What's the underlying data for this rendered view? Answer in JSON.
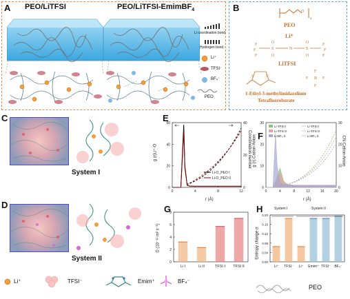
{
  "panels": {
    "A": {
      "letter": "A",
      "title_left": "PEO/LiTFSI",
      "title_right": "PEO/LiTFSI-EmimBF",
      "title_right_sub": "4",
      "legend": [
        "Li coordination bond",
        "Hydrogen bond",
        "Li⁺",
        "TFSI⁻",
        "BF₄⁻",
        "PEO"
      ]
    },
    "B": {
      "letter": "B",
      "peo": "PEO",
      "li": "Li⁺",
      "litfsi": "LiTFSI",
      "emim_line1": "1-Ethyl-3-methylimidazolium",
      "emim_line2": "Tetrafluoroborate"
    },
    "C": {
      "letter": "C",
      "system": "System I"
    },
    "D": {
      "letter": "D",
      "system": "System II"
    },
    "E": {
      "letter": "E",
      "ylabel_left": "g (r)Li⁺-O",
      "ylabel_right": "Coordination number",
      "xlabel": "r (Å)",
      "legend": [
        "Li-O_PEO I",
        "Li-O_PEO II"
      ]
    },
    "F": {
      "letter": "F",
      "ylabel_left": "g (r) Cation-Anion",
      "ylabel_right": "CN Cation-Anion",
      "xlabel": "r (Å)",
      "legend": [
        "Li-TFSI I",
        "Li-TFSI II",
        "Li-BF₄ II",
        "Li-TFSI I",
        "Li-TFSI II",
        "Li-BF₄ II"
      ]
    },
    "G": {
      "letter": "G",
      "ylabel": "D (10⁻¹¹ m² s⁻¹)"
    },
    "H": {
      "letter": "H",
      "ylabel": "Entropy change σ",
      "xlabel_group": "PEO",
      "group1": "System I",
      "group2": "System II"
    }
  },
  "bottom_legend": [
    "Li⁺",
    "TFSI⁻",
    "Emim⁺",
    "BF₄⁻"
  ],
  "chart_data": [
    {
      "type": "line",
      "panel": "E",
      "xlabel": "r (Å)",
      "ylabel": "g (r)Li⁺-O",
      "xlim": [
        0,
        12
      ],
      "x_ticks": [
        0,
        4,
        8,
        12
      ],
      "y_ticks_left": [
        0,
        20,
        40,
        60
      ],
      "y_ticks_right": [
        0,
        20,
        40
      ],
      "series": [
        {
          "name": "Li-O_PEO I",
          "color": "#000000",
          "x": [
            0,
            1.5,
            2.0,
            2.2,
            2.6,
            3.0,
            4,
            6,
            8,
            10,
            12
          ],
          "y": [
            0,
            0,
            58,
            20,
            2,
            1.2,
            1.0,
            1.0,
            1.0,
            1.0,
            1.0
          ]
        },
        {
          "name": "Li-O_PEO II",
          "color": "#8b0000",
          "x": [
            0,
            1.5,
            2.0,
            2.2,
            2.6,
            3.0,
            4,
            6,
            8,
            10,
            12
          ],
          "y": [
            0,
            0,
            52,
            18,
            2,
            1.2,
            1.0,
            1.0,
            1.0,
            1.0,
            1.0
          ]
        }
      ]
    },
    {
      "type": "area",
      "panel": "F",
      "xlabel": "r (Å)",
      "xlim": [
        0,
        20
      ],
      "x_ticks": [
        0,
        4,
        8,
        12,
        16,
        20
      ],
      "y_ticks_left": [
        0,
        10,
        20,
        30
      ],
      "y_ticks_right": [
        0,
        10,
        20,
        30
      ],
      "series": [
        {
          "name": "Li-TFSI I",
          "color": "#8fbf7a",
          "x": [
            0,
            2,
            3,
            4,
            5,
            6,
            8,
            20
          ],
          "y": [
            0,
            0,
            4,
            9,
            3,
            1.5,
            1,
            1
          ]
        },
        {
          "name": "Li-TFSI II",
          "color": "#e8a2a2",
          "x": [
            0,
            2,
            3,
            4,
            5,
            6,
            8,
            20
          ],
          "y": [
            0,
            0,
            3,
            7,
            2.5,
            1.4,
            1,
            1
          ]
        },
        {
          "name": "Li-BF₄ II",
          "color": "#a7a7d6",
          "x": [
            0,
            2,
            2.7,
            3.2,
            4,
            6,
            8,
            20
          ],
          "y": [
            0,
            0,
            25,
            10,
            2,
            1.2,
            1,
            1
          ]
        }
      ]
    },
    {
      "type": "bar",
      "panel": "G",
      "categories": [
        "Li I",
        "Li II",
        "TFSI I",
        "TFSI II"
      ],
      "values": [
        3.2,
        2.3,
        5.7,
        7.0
      ],
      "ylim": [
        0,
        8
      ],
      "y_ticks": [
        0,
        2,
        4,
        6,
        8
      ],
      "ylabel": "D (10⁻¹¹ m² s⁻¹)"
    },
    {
      "type": "bar",
      "panel": "H",
      "categories": [
        "Li⁺",
        "TFSI⁻",
        "Li⁺",
        "Emim⁺",
        "TFSI⁻",
        "BF₄⁻"
      ],
      "values": [
        0.065,
        0.185,
        0.065,
        0.185,
        0.185,
        0.195
      ],
      "ylim": [
        0,
        0.2
      ],
      "y_ticks": [
        0.0,
        0.04,
        0.08,
        0.12,
        0.16,
        0.2
      ],
      "ylabel": "Entropy change σ"
    }
  ]
}
